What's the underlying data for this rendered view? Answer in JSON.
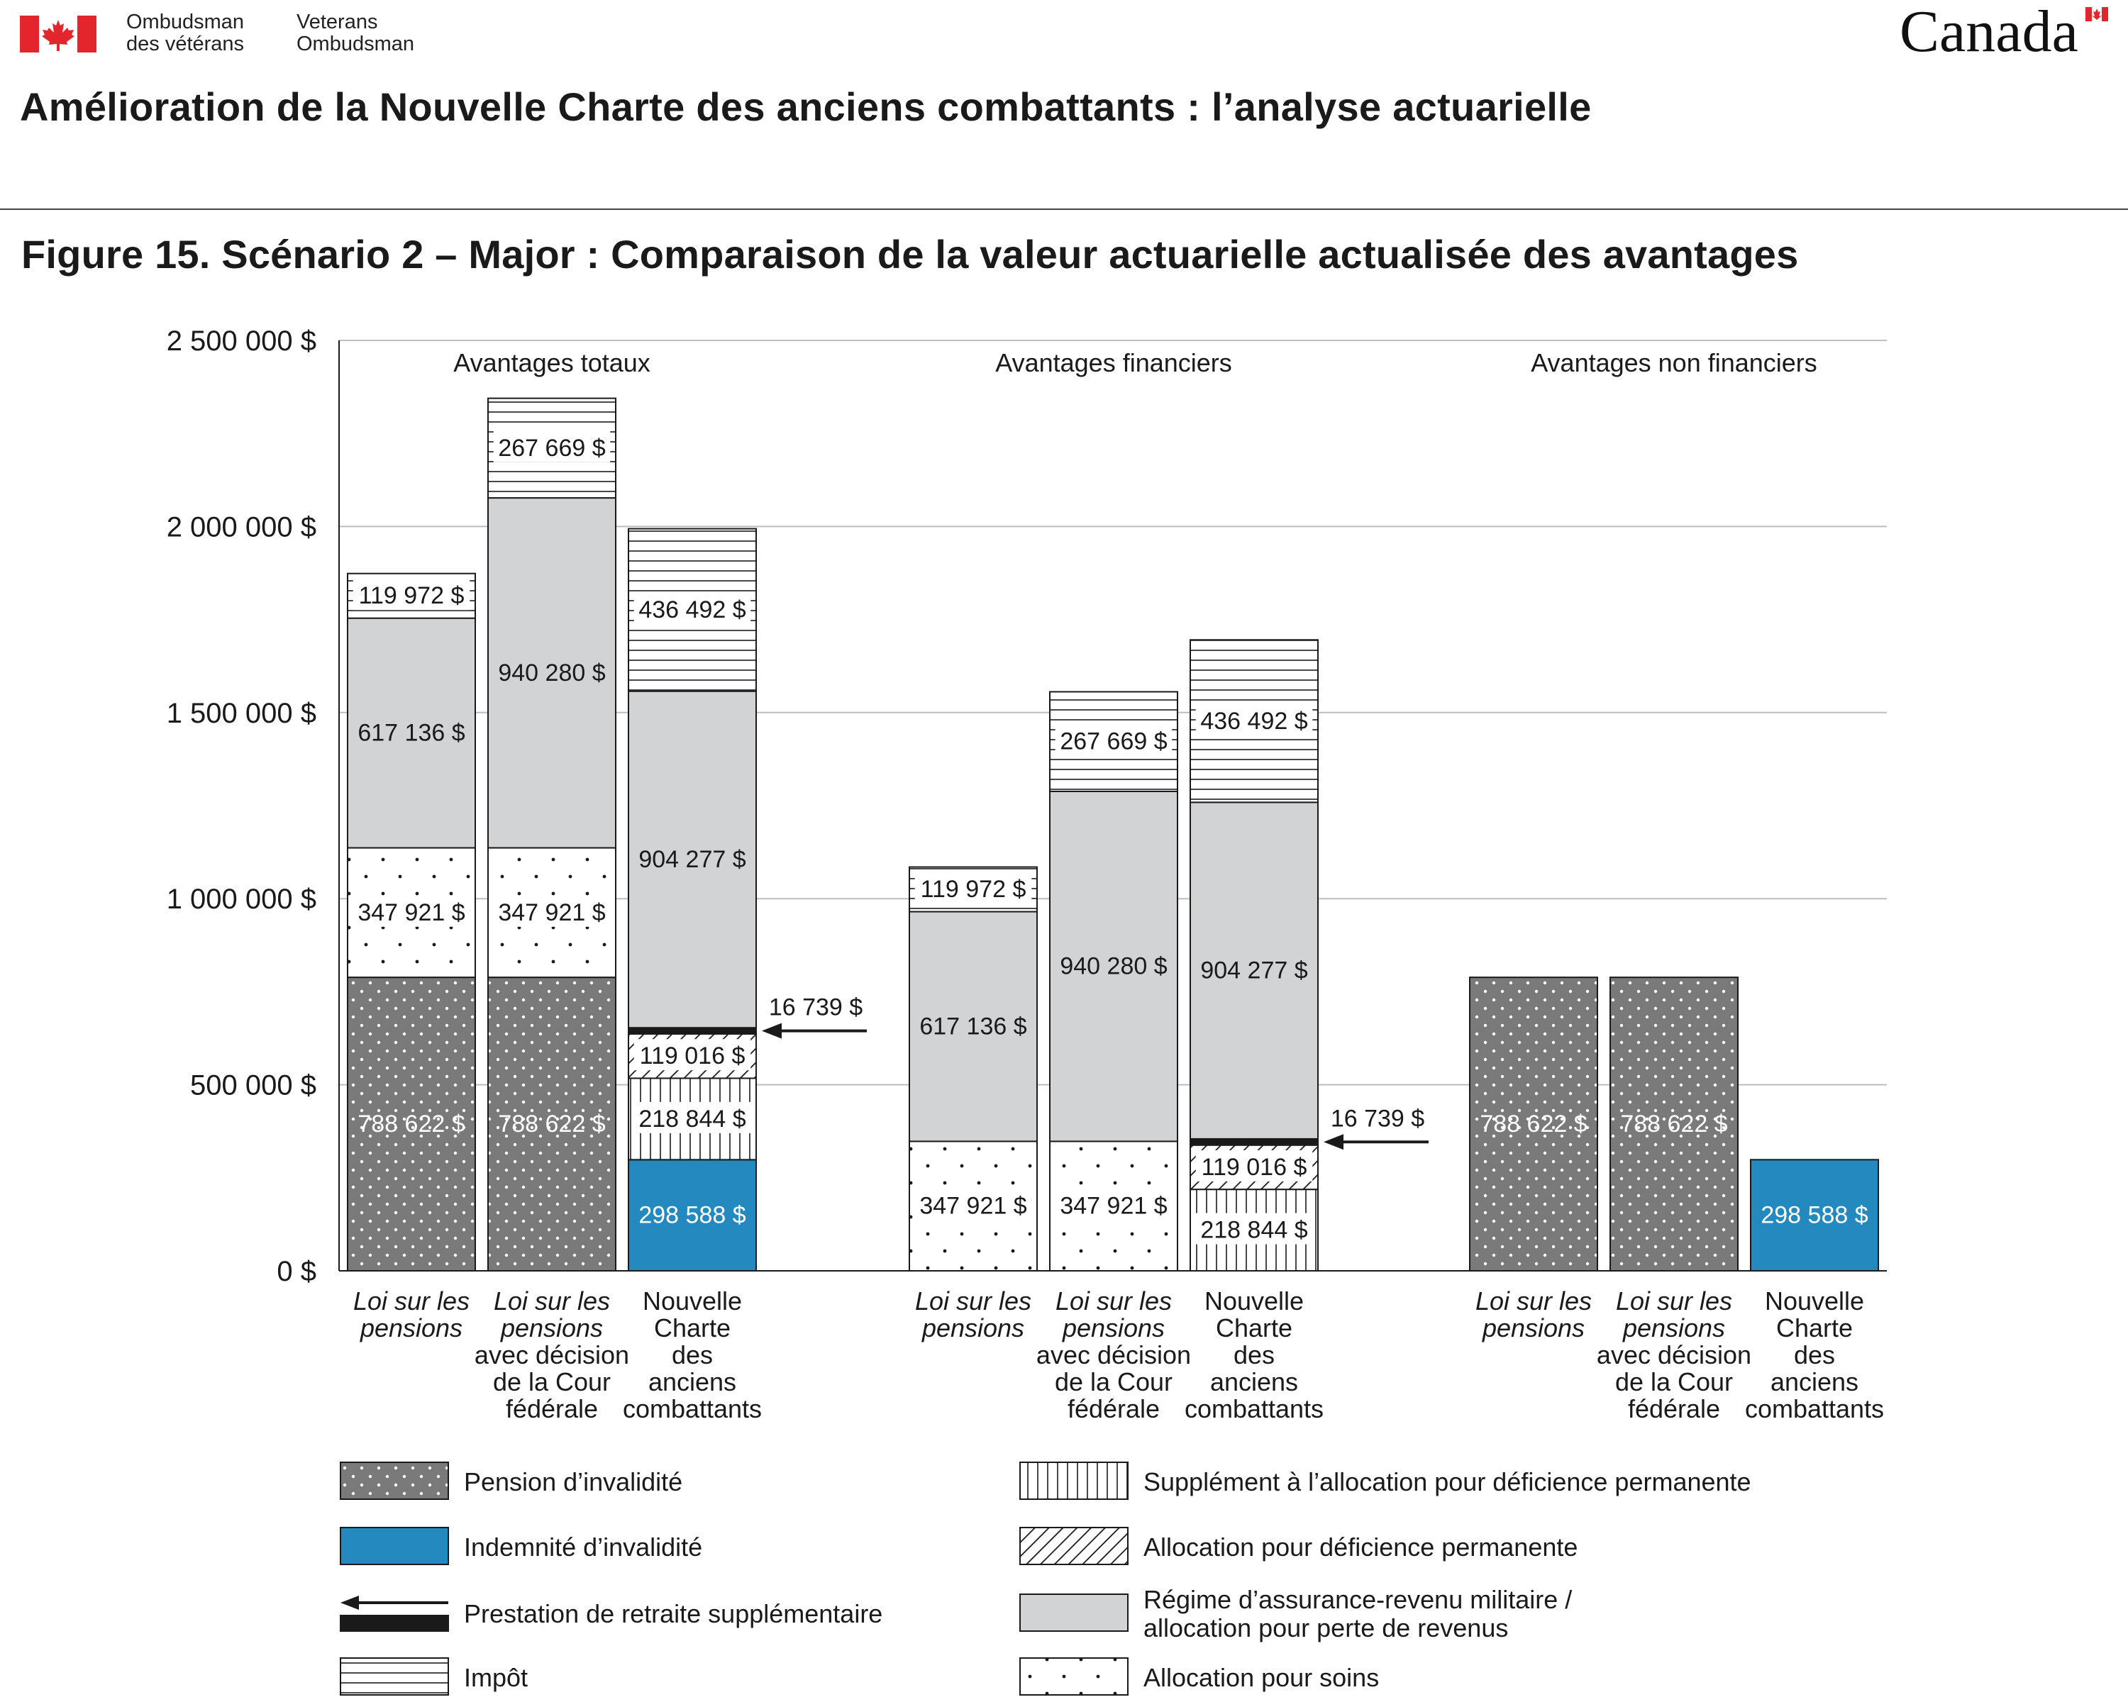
{
  "header": {
    "org_fr": [
      "Ombudsman",
      "des vétérans"
    ],
    "org_en": [
      "Veterans",
      "Ombudsman"
    ],
    "wordmark": "Canada",
    "flag_icon": "canada-flag-icon",
    "document_title": "Amélioration de la Nouvelle Charte des anciens combattants : l’analyse actuarielle"
  },
  "colors": {
    "pension_dots_bg": "#7a7a7b",
    "indemnity_blue": "#2489be",
    "gray_fill": "#d2d3d5",
    "retirement_black": "#1a1a1a",
    "grid": "#bdbdbd"
  },
  "chart_data": {
    "type": "bar",
    "stacked": true,
    "title": "Figure 15. Scénario 2 – Major : Comparaison de la valeur actuarielle actualisée des avantages",
    "ylim": [
      0,
      2500000
    ],
    "yticks": [
      0,
      500000,
      1000000,
      1500000,
      2000000,
      2500000
    ],
    "ytick_labels": [
      "0 $",
      "500 000 $",
      "1 000 000 $",
      "1 500 000 $",
      "2 000 000 $",
      "2 500 000 $"
    ],
    "grid": true,
    "legend_position": "bottom",
    "groups": [
      {
        "label": "Avantages totaux",
        "bars": [
          {
            "label": [
              "Loi sur les",
              "pensions"
            ],
            "italic_lines": 2,
            "segments": [
              {
                "series": "Pension d’invalidité",
                "value": 788622,
                "label": "788 622 $"
              },
              {
                "series": "Allocation pour soins",
                "value": 347921,
                "label": "347 921 $"
              },
              {
                "series": "Régime d’assurance-revenu militaire / allocation pour perte de revenus",
                "value": 617136,
                "label": "617 136 $"
              },
              {
                "series": "Impôt",
                "value": 119972,
                "label": "119 972 $"
              }
            ]
          },
          {
            "label": [
              "Loi sur les",
              "pensions",
              "avec décision",
              "de la Cour",
              "fédérale"
            ],
            "italic_lines": 2,
            "segments": [
              {
                "series": "Pension d’invalidité",
                "value": 788622,
                "label": "788 622 $"
              },
              {
                "series": "Allocation pour soins",
                "value": 347921,
                "label": "347 921 $"
              },
              {
                "series": "Régime d’assurance-revenu militaire / allocation pour perte de revenus",
                "value": 940280,
                "label": "940 280 $"
              },
              {
                "series": "Impôt",
                "value": 267669,
                "label": "267 669 $"
              }
            ]
          },
          {
            "label": [
              "Nouvelle",
              "Charte",
              "des",
              "anciens",
              "combattants"
            ],
            "italic_lines": 0,
            "segments": [
              {
                "series": "Indemnité d’invalidité",
                "value": 298588,
                "label": "298 588 $"
              },
              {
                "series": "Supplément à l’allocation pour déficience permanente",
                "value": 218844,
                "label": "218 844 $"
              },
              {
                "series": "Allocation pour déficience permanente",
                "value": 119016,
                "label": "119 016 $"
              },
              {
                "series": "Prestation de retraite supplémentaire",
                "value": 16739,
                "label": "16 739 $",
                "callout": true
              },
              {
                "series": "Régime d’assurance-revenu militaire / allocation pour perte de revenus",
                "value": 904277,
                "label": "904 277 $"
              },
              {
                "series": "Impôt",
                "value": 436492,
                "label": "436 492 $"
              }
            ]
          }
        ]
      },
      {
        "label": "Avantages financiers",
        "bars": [
          {
            "label": [
              "Loi sur les",
              "pensions"
            ],
            "italic_lines": 2,
            "segments": [
              {
                "series": "Allocation pour soins",
                "value": 347921,
                "label": "347 921 $"
              },
              {
                "series": "Régime d’assurance-revenu militaire / allocation pour perte de revenus",
                "value": 617136,
                "label": "617 136 $"
              },
              {
                "series": "Impôt",
                "value": 119972,
                "label": "119 972 $"
              }
            ]
          },
          {
            "label": [
              "Loi sur les",
              "pensions",
              "avec décision",
              "de la Cour",
              "fédérale"
            ],
            "italic_lines": 2,
            "segments": [
              {
                "series": "Allocation pour soins",
                "value": 347921,
                "label": "347 921 $"
              },
              {
                "series": "Régime d’assurance-revenu militaire / allocation pour perte de revenus",
                "value": 940280,
                "label": "940 280 $"
              },
              {
                "series": "Impôt",
                "value": 267669,
                "label": "267 669 $"
              }
            ]
          },
          {
            "label": [
              "Nouvelle",
              "Charte",
              "des",
              "anciens",
              "combattants"
            ],
            "italic_lines": 0,
            "segments": [
              {
                "series": "Supplément à l’allocation pour déficience permanente",
                "value": 218844,
                "label": "218 844 $"
              },
              {
                "series": "Allocation pour déficience permanente",
                "value": 119016,
                "label": "119 016 $"
              },
              {
                "series": "Prestation de retraite supplémentaire",
                "value": 16739,
                "label": "16 739 $",
                "callout": true
              },
              {
                "series": "Régime d’assurance-revenu militaire / allocation pour perte de revenus",
                "value": 904277,
                "label": "904 277 $"
              },
              {
                "series": "Impôt",
                "value": 436492,
                "label": "436 492 $"
              }
            ]
          }
        ]
      },
      {
        "label": "Avantages non financiers",
        "bars": [
          {
            "label": [
              "Loi sur les",
              "pensions"
            ],
            "italic_lines": 2,
            "segments": [
              {
                "series": "Pension d’invalidité",
                "value": 788622,
                "label": "788 622 $"
              }
            ]
          },
          {
            "label": [
              "Loi sur les",
              "pensions",
              "avec décision",
              "de la Cour",
              "fédérale"
            ],
            "italic_lines": 2,
            "segments": [
              {
                "series": "Pension d’invalidité",
                "value": 788622,
                "label": "788 622 $"
              }
            ]
          },
          {
            "label": [
              "Nouvelle",
              "Charte",
              "des",
              "anciens",
              "combattants"
            ],
            "italic_lines": 0,
            "segments": [
              {
                "series": "Indemnité d’invalidité",
                "value": 298588,
                "label": "298 588 $"
              }
            ]
          }
        ]
      }
    ],
    "legend": [
      {
        "series": "Pension d’invalidité",
        "label": [
          "Pension d’invalidité"
        ]
      },
      {
        "series": "Supplément à l’allocation pour déficience permanente",
        "label": [
          "Supplément à l’allocation pour déficience permanente"
        ]
      },
      {
        "series": "Indemnité d’invalidité",
        "label": [
          "Indemnité d’invalidité"
        ]
      },
      {
        "series": "Allocation pour déficience permanente",
        "label": [
          "Allocation pour déficience permanente"
        ]
      },
      {
        "series": "Prestation de retraite supplémentaire",
        "label": [
          "Prestation de retraite supplémentaire"
        ]
      },
      {
        "series": "Régime d’assurance-revenu militaire / allocation pour perte de revenus",
        "label": [
          "Régime d’assurance-revenu militaire /",
          "allocation pour perte de revenus"
        ]
      },
      {
        "series": "Impôt",
        "label": [
          "Impôt"
        ]
      },
      {
        "series": "Allocation pour soins",
        "label": [
          "Allocation pour soins"
        ]
      }
    ]
  }
}
